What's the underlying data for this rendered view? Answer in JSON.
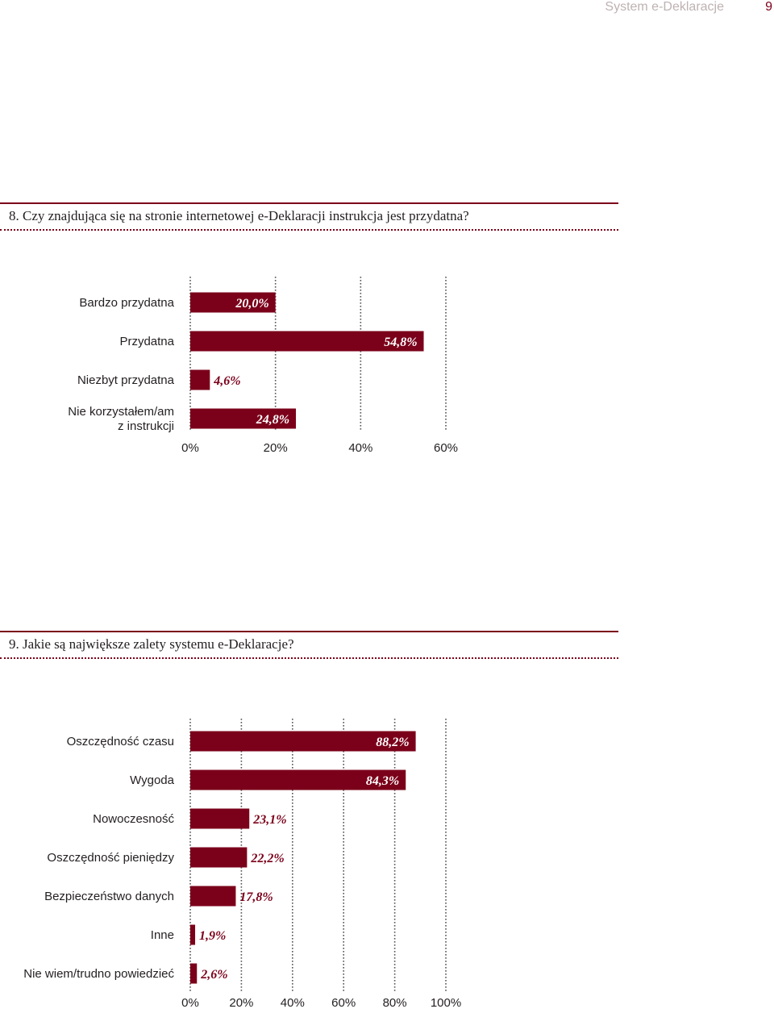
{
  "header": {
    "title": "System e-Deklaracje",
    "page_number": "9"
  },
  "questions": [
    {
      "title": "8. Czy znajdująca się na stronie internetowej e-Deklaracji instrukcja jest przydatna?"
    },
    {
      "title": "9. Jakie są największe zalety systemu e-Deklaracje?"
    }
  ],
  "colors": {
    "bar": "#7b001a",
    "accent": "#7b001a",
    "grid": "#555555"
  },
  "chart_data": [
    {
      "type": "bar",
      "orientation": "horizontal",
      "categories": [
        [
          "Bardzo przydatna"
        ],
        [
          "Przydatna"
        ],
        [
          "Niezbyt przydatna"
        ],
        [
          "Nie korzystałem/am",
          "z instrukcji"
        ]
      ],
      "values": [
        20.0,
        54.8,
        4.6,
        24.8
      ],
      "value_labels": [
        "20,0%",
        "54,8%",
        "4,6%",
        "24,8%"
      ],
      "ticks": [
        0,
        20,
        40,
        60
      ],
      "tick_labels": [
        "0%",
        "20%",
        "40%",
        "60%"
      ],
      "xlim": [
        0,
        60
      ],
      "grid": true
    },
    {
      "type": "bar",
      "orientation": "horizontal",
      "categories": [
        [
          "Oszczędność czasu"
        ],
        [
          "Wygoda"
        ],
        [
          "Nowoczesność"
        ],
        [
          "Oszczędność pieniędzy"
        ],
        [
          "Bezpieczeństwo danych"
        ],
        [
          "Inne"
        ],
        [
          "Nie wiem/trudno powiedzieć"
        ]
      ],
      "values": [
        88.2,
        84.3,
        23.1,
        22.2,
        17.8,
        1.9,
        2.6
      ],
      "value_labels": [
        "88,2%",
        "84,3%",
        "23,1%",
        "22,2%",
        "17,8%",
        "1,9%",
        "2,6%"
      ],
      "ticks": [
        0,
        20,
        40,
        60,
        80,
        100
      ],
      "tick_labels": [
        "0%",
        "20%",
        "40%",
        "60%",
        "80%",
        "100%"
      ],
      "xlim": [
        0,
        100
      ],
      "grid": true
    }
  ]
}
